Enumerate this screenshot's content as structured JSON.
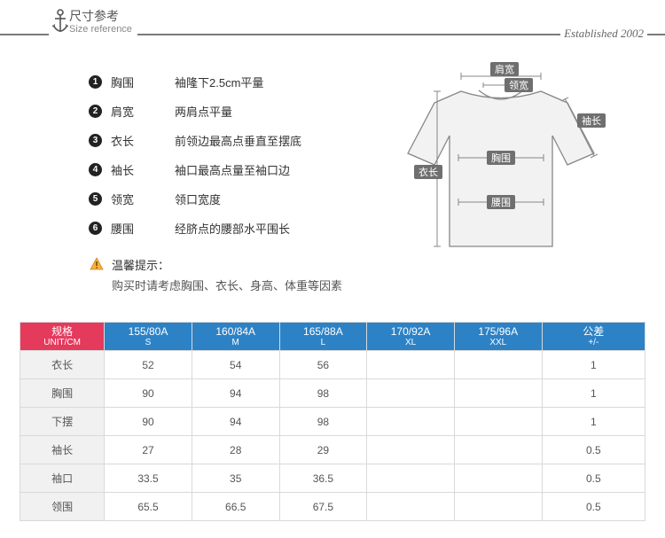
{
  "header": {
    "title_cn": "尺寸参考",
    "title_en": "Size reference",
    "established": "Established 2002"
  },
  "definitions": [
    {
      "num": "❶",
      "label": "胸围",
      "desc": "袖隆下2.5cm平量"
    },
    {
      "num": "❷",
      "label": "肩宽",
      "desc": "两肩点平量"
    },
    {
      "num": "❸",
      "label": "衣长",
      "desc": "前领边最高点垂直至摆底"
    },
    {
      "num": "❹",
      "label": "袖长",
      "desc": "袖口最高点量至袖口边"
    },
    {
      "num": "❺",
      "label": "领宽",
      "desc": "领口宽度"
    },
    {
      "num": "❻",
      "label": "腰围",
      "desc": "经脐点的腰部水平围长"
    }
  ],
  "tip": {
    "title": "温馨提示：",
    "body": "购买时请考虑胸围、衣长、身高、体重等因素"
  },
  "diagram": {
    "labels": {
      "shoulder": "肩宽",
      "collar": "领宽",
      "sleeve": "袖长",
      "chest": "胸围",
      "length": "衣长",
      "waist": "腰围"
    },
    "colors": {
      "fill": "#f2f2f2",
      "stroke": "#878787",
      "label_bg": "#6f6f6f",
      "label_txt": "#ffffff"
    }
  },
  "table": {
    "spec": {
      "t1": "规格",
      "t2": "UNIT/CM"
    },
    "tolerance": {
      "t1": "公差",
      "t2": "+/-"
    },
    "columns": [
      {
        "t1": "155/80A",
        "t2": "S"
      },
      {
        "t1": "160/84A",
        "t2": "M"
      },
      {
        "t1": "165/88A",
        "t2": "L"
      },
      {
        "t1": "170/92A",
        "t2": "XL"
      },
      {
        "t1": "175/96A",
        "t2": "XXL"
      }
    ],
    "rows": [
      {
        "h": "衣长",
        "v": [
          "52",
          "54",
          "56",
          "",
          ""
        ],
        "tol": "1"
      },
      {
        "h": "胸围",
        "v": [
          "90",
          "94",
          "98",
          "",
          ""
        ],
        "tol": "1"
      },
      {
        "h": "下摆",
        "v": [
          "90",
          "94",
          "98",
          "",
          ""
        ],
        "tol": "1"
      },
      {
        "h": "袖长",
        "v": [
          "27",
          "28",
          "29",
          "",
          ""
        ],
        "tol": "0.5"
      },
      {
        "h": "袖口",
        "v": [
          "33.5",
          "35",
          "36.5",
          "",
          ""
        ],
        "tol": "0.5"
      },
      {
        "h": "领围",
        "v": [
          "65.5",
          "66.5",
          "67.5",
          "",
          ""
        ],
        "tol": "0.5"
      }
    ],
    "colors": {
      "spec_bg": "#e43a5c",
      "col_bg": "#2d82c6",
      "rowh_bg": "#f1f1f1",
      "border": "#d9d9d9"
    }
  }
}
